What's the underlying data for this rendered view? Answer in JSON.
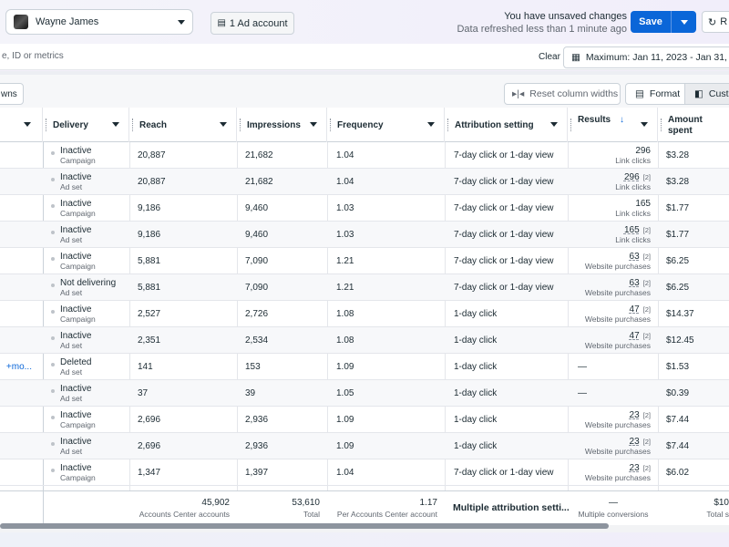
{
  "topbar": {
    "account_name": "Wayne James",
    "ad_account_label": "1 Ad account",
    "unsaved_line1": "You have unsaved changes",
    "unsaved_line2": "Data refreshed less than 1 minute ago",
    "save_label": "Save",
    "refresh_label": "R"
  },
  "search": {
    "placeholder": "e, ID or metrics",
    "clear_label": "Clear",
    "date_range": "Maximum: Jan 11, 2023 - Jan 31, 20"
  },
  "toolbar": {
    "breakdowns_label": "wns",
    "reset_label": "Reset column widths",
    "format_label": "Format",
    "custom_label": "Cust"
  },
  "columns": {
    "delivery": "Delivery",
    "reach": "Reach",
    "impressions": "Impressions",
    "frequency": "Frequency",
    "attribution": "Attribution setting",
    "results": "Results",
    "results_arrow": "↓",
    "amount": "Amount spent"
  },
  "rows": [
    {
      "name": "",
      "status": "Inactive",
      "level": "Campaign",
      "reach": "20,887",
      "impressions": "21,682",
      "frequency": "1.04",
      "attribution": "7-day click or 1-day view",
      "result": "296",
      "result_badge": "",
      "result_type": "Link clicks",
      "amount": "$3.28"
    },
    {
      "name": "",
      "status": "Inactive",
      "level": "Ad set",
      "reach": "20,887",
      "impressions": "21,682",
      "frequency": "1.04",
      "attribution": "7-day click or 1-day view",
      "result": "296",
      "result_badge": "[2]",
      "result_type": "Link clicks",
      "amount": "$3.28"
    },
    {
      "name": "",
      "status": "Inactive",
      "level": "Campaign",
      "reach": "9,186",
      "impressions": "9,460",
      "frequency": "1.03",
      "attribution": "7-day click or 1-day view",
      "result": "165",
      "result_badge": "",
      "result_type": "Link clicks",
      "amount": "$1.77"
    },
    {
      "name": "",
      "status": "Inactive",
      "level": "Ad set",
      "reach": "9,186",
      "impressions": "9,460",
      "frequency": "1.03",
      "attribution": "7-day click or 1-day view",
      "result": "165",
      "result_badge": "[2]",
      "result_type": "Link clicks",
      "amount": "$1.77"
    },
    {
      "name": "",
      "status": "Inactive",
      "level": "Campaign",
      "reach": "5,881",
      "impressions": "7,090",
      "frequency": "1.21",
      "attribution": "7-day click or 1-day view",
      "result": "63",
      "result_badge": "[2]",
      "result_type": "Website purchases",
      "amount": "$6.25"
    },
    {
      "name": "",
      "status": "Not delivering",
      "level": "Ad set",
      "reach": "5,881",
      "impressions": "7,090",
      "frequency": "1.21",
      "attribution": "7-day click or 1-day view",
      "result": "63",
      "result_badge": "[2]",
      "result_type": "Website purchases",
      "amount": "$6.25"
    },
    {
      "name": "",
      "status": "Inactive",
      "level": "Campaign",
      "reach": "2,527",
      "impressions": "2,726",
      "frequency": "1.08",
      "attribution": "1-day click",
      "result": "47",
      "result_badge": "[2]",
      "result_type": "Website purchases",
      "amount": "$14.37"
    },
    {
      "name": "",
      "status": "Inactive",
      "level": "Ad set",
      "reach": "2,351",
      "impressions": "2,534",
      "frequency": "1.08",
      "attribution": "1-day click",
      "result": "47",
      "result_badge": "[2]",
      "result_type": "Website purchases",
      "amount": "$12.45"
    },
    {
      "name": "+mo...",
      "status": "Deleted",
      "level": "Ad set",
      "reach": "141",
      "impressions": "153",
      "frequency": "1.09",
      "attribution": "1-day click",
      "result": "—",
      "result_badge": "",
      "result_type": "",
      "amount": "$1.53"
    },
    {
      "name": "",
      "status": "Inactive",
      "level": "Ad set",
      "reach": "37",
      "impressions": "39",
      "frequency": "1.05",
      "attribution": "1-day click",
      "result": "—",
      "result_badge": "",
      "result_type": "",
      "amount": "$0.39"
    },
    {
      "name": "",
      "status": "Inactive",
      "level": "Campaign",
      "reach": "2,696",
      "impressions": "2,936",
      "frequency": "1.09",
      "attribution": "1-day click",
      "result": "23",
      "result_badge": "[2]",
      "result_type": "Website purchases",
      "amount": "$7.44"
    },
    {
      "name": "",
      "status": "Inactive",
      "level": "Ad set",
      "reach": "2,696",
      "impressions": "2,936",
      "frequency": "1.09",
      "attribution": "1-day click",
      "result": "23",
      "result_badge": "[2]",
      "result_type": "Website purchases",
      "amount": "$7.44"
    },
    {
      "name": "",
      "status": "Inactive",
      "level": "Campaign",
      "reach": "1,347",
      "impressions": "1,397",
      "frequency": "1.04",
      "attribution": "7-day click or 1-day view",
      "result": "23",
      "result_badge": "[2]",
      "result_type": "Website purchases",
      "amount": "$6.02"
    }
  ],
  "footer": {
    "reach_total": "45,902",
    "reach_sub": "Accounts Center accounts",
    "impressions_total": "53,610",
    "impressions_sub": "Total",
    "frequency_total": "1.17",
    "frequency_sub": "Per Accounts Center account",
    "attribution": "Multiple attribution setti...",
    "results_total": "—",
    "results_sub": "Multiple conversions",
    "amount_total": "$10",
    "amount_sub": "Total s"
  }
}
